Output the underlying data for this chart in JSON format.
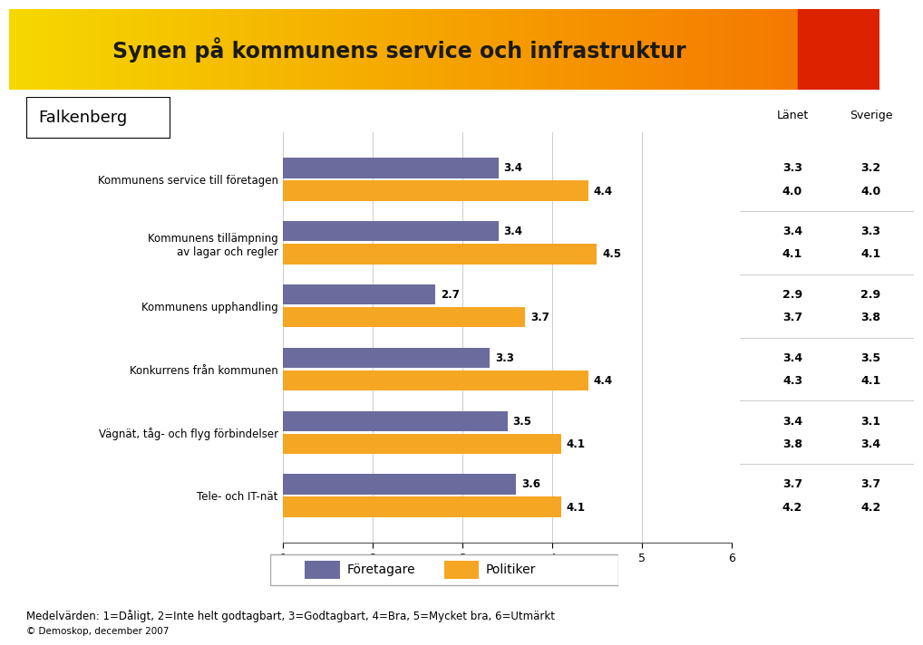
{
  "title": "Synen på kommunens service och infrastruktur",
  "subtitle": "Falkenberg",
  "categories": [
    "Kommunens service till företagen",
    "Kommunens tillämpning\nav lagar och regler",
    "Kommunens upphandling",
    "Konkurrens från kommunen",
    "Vägnät, tåg- och flyg förbindelser",
    "Tele- och IT-nät"
  ],
  "foretagare_values": [
    3.4,
    3.4,
    2.7,
    3.3,
    3.5,
    3.6
  ],
  "politiker_values": [
    4.4,
    4.5,
    3.7,
    4.4,
    4.1,
    4.1
  ],
  "lanet_foretagare": [
    3.3,
    3.4,
    2.9,
    3.4,
    3.4,
    3.7
  ],
  "lanet_politiker": [
    4.0,
    4.1,
    3.7,
    4.3,
    3.8,
    4.2
  ],
  "sverige_foretagare": [
    3.2,
    3.3,
    2.9,
    3.5,
    3.1,
    3.7
  ],
  "sverige_politiker": [
    4.0,
    4.1,
    3.8,
    4.1,
    3.4,
    4.2
  ],
  "foretagare_color": "#6b6b9e",
  "politiker_color": "#f5a623",
  "title_bg_left": "#f5d800",
  "title_bg_right": "#f57800",
  "title_far_right": "#dd2200",
  "title_text_color": "#1a1a1a",
  "xlim_min": 1,
  "xlim_max": 6,
  "xticks": [
    1,
    2,
    3,
    4,
    5,
    6
  ],
  "bar_height": 0.32,
  "bar_gap": 0.04,
  "legend_foretagare": "Företagare",
  "legend_politiker": "Politiker",
  "footer_text": "Medelvärden: 1=Dåligt, 2=Inte helt godtagbart, 3=Godtagbart, 4=Bra, 5=Mycket bra, 6=Utmärkt",
  "copyright_text": "© Demoskop, december 2007",
  "lanet_label": "Länet",
  "sverige_label": "Sverige"
}
